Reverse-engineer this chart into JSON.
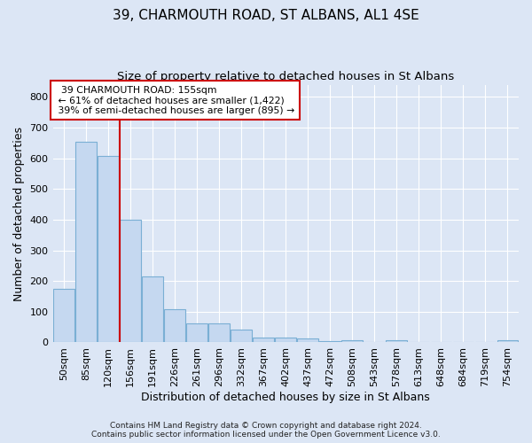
{
  "title": "39, CHARMOUTH ROAD, ST ALBANS, AL1 4SE",
  "subtitle": "Size of property relative to detached houses in St Albans",
  "xlabel": "Distribution of detached houses by size in St Albans",
  "ylabel": "Number of detached properties",
  "footer_line1": "Contains HM Land Registry data © Crown copyright and database right 2024.",
  "footer_line2": "Contains public sector information licensed under the Open Government Licence v3.0.",
  "bin_labels": [
    "50sqm",
    "85sqm",
    "120sqm",
    "156sqm",
    "191sqm",
    "226sqm",
    "261sqm",
    "296sqm",
    "332sqm",
    "367sqm",
    "402sqm",
    "437sqm",
    "472sqm",
    "508sqm",
    "543sqm",
    "578sqm",
    "613sqm",
    "648sqm",
    "684sqm",
    "719sqm",
    "754sqm"
  ],
  "bar_heights": [
    175,
    655,
    607,
    400,
    215,
    107,
    63,
    63,
    43,
    17,
    17,
    14,
    5,
    8,
    0,
    7,
    0,
    0,
    0,
    0,
    7
  ],
  "bar_color": "#c5d8f0",
  "bar_edge_color": "#7aafd4",
  "bar_width": 0.95,
  "red_line_x": 2.5,
  "red_line_color": "#cc0000",
  "annotation_text": "  39 CHARMOUTH ROAD: 155sqm  \n ← 61% of detached houses are smaller (1,422)\n 39% of semi-detached houses are larger (895) →",
  "annotation_box_color": "#ffffff",
  "annotation_box_edge_color": "#cc0000",
  "ylim": [
    0,
    840
  ],
  "yticks": [
    0,
    100,
    200,
    300,
    400,
    500,
    600,
    700,
    800
  ],
  "background_color": "#dce6f5",
  "plot_bg_color": "#dce6f5",
  "grid_color": "#ffffff",
  "title_fontsize": 11,
  "subtitle_fontsize": 9.5,
  "ylabel_fontsize": 9,
  "xlabel_fontsize": 9,
  "tick_fontsize": 8,
  "footer_fontsize": 6.5
}
